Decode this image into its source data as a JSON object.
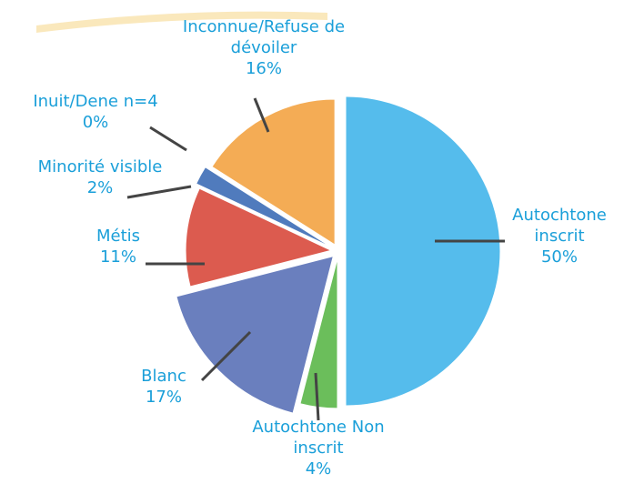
{
  "chart_data": {
    "type": "pie",
    "categories": [
      "Autochtone inscrit",
      "Autochtone Non inscrit",
      "Blanc",
      "Métis",
      "Minorité visible",
      "Inuit/Dene n=4",
      "Inconnue/Refuse de dévoiler"
    ],
    "values": [
      50,
      4,
      17,
      11,
      2,
      0,
      16
    ],
    "value_labels": [
      "50%",
      "4%",
      "17%",
      "11%",
      "2%",
      "0%",
      "16%"
    ],
    "colors": [
      "#43b5ea",
      "#5cb84a",
      "#5a72b8",
      "#d94a3c",
      "#3e6db6",
      "#3e6db6",
      "#f3a443"
    ]
  }
}
